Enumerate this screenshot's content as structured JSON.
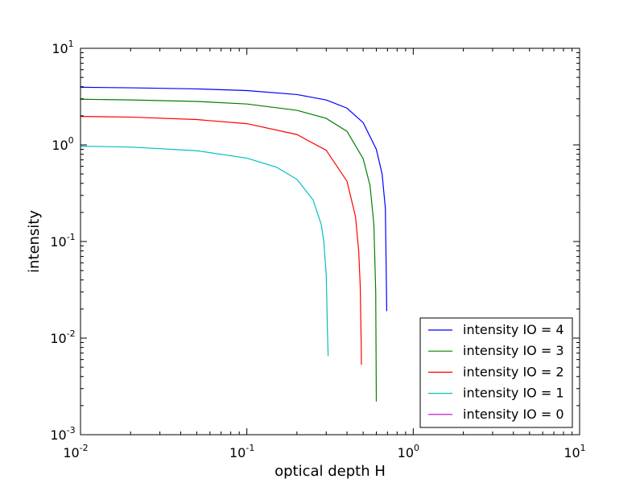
{
  "chart_data": {
    "type": "line",
    "title": "",
    "xlabel": "optical depth H",
    "ylabel": "intensity",
    "xscale": "log",
    "yscale": "log",
    "xlim": [
      0.01,
      10
    ],
    "ylim": [
      0.001,
      10
    ],
    "x_ticks": [
      {
        "value": 0.01,
        "base": "10",
        "exp": "-2"
      },
      {
        "value": 0.1,
        "base": "10",
        "exp": "-1"
      },
      {
        "value": 1,
        "base": "10",
        "exp": "0"
      },
      {
        "value": 10,
        "base": "10",
        "exp": "1"
      }
    ],
    "y_ticks": [
      {
        "value": 0.001,
        "base": "10",
        "exp": "-3"
      },
      {
        "value": 0.01,
        "base": "10",
        "exp": "-2"
      },
      {
        "value": 0.1,
        "base": "10",
        "exp": "-1"
      },
      {
        "value": 1,
        "base": "10",
        "exp": "0"
      },
      {
        "value": 10,
        "base": "10",
        "exp": "1"
      }
    ],
    "grid": false,
    "legend_position": "lower-right",
    "series": [
      {
        "name": "intensity IO = 4",
        "color": "#0000ff",
        "x": [
          0.01,
          0.02,
          0.05,
          0.1,
          0.2,
          0.3,
          0.4,
          0.5,
          0.6,
          0.65,
          0.68,
          0.693
        ],
        "y": [
          3.95,
          3.9,
          3.8,
          3.65,
          3.32,
          2.92,
          2.4,
          1.7,
          0.9,
          0.5,
          0.22,
          0.019
        ]
      },
      {
        "name": "intensity IO = 3",
        "color": "#008000",
        "x": [
          0.01,
          0.02,
          0.05,
          0.1,
          0.2,
          0.3,
          0.4,
          0.5,
          0.55,
          0.58,
          0.595,
          0.6
        ],
        "y": [
          2.97,
          2.92,
          2.82,
          2.65,
          2.28,
          1.88,
          1.38,
          0.72,
          0.38,
          0.15,
          0.03,
          0.0022
        ]
      },
      {
        "name": "intensity IO = 2",
        "color": "#ff0000",
        "x": [
          0.01,
          0.02,
          0.05,
          0.1,
          0.2,
          0.3,
          0.4,
          0.45,
          0.47,
          0.48,
          0.487,
          0.488
        ],
        "y": [
          1.97,
          1.94,
          1.83,
          1.66,
          1.28,
          0.88,
          0.42,
          0.18,
          0.08,
          0.035,
          0.008,
          0.0053
        ]
      },
      {
        "name": "intensity IO = 1",
        "color": "#00bfbf",
        "x": [
          0.01,
          0.02,
          0.05,
          0.1,
          0.15,
          0.2,
          0.25,
          0.28,
          0.29,
          0.3,
          0.305,
          0.308
        ],
        "y": [
          0.97,
          0.95,
          0.87,
          0.73,
          0.59,
          0.44,
          0.27,
          0.15,
          0.1,
          0.045,
          0.012,
          0.0065
        ]
      },
      {
        "name": "intensity IO = 0",
        "color": "#bf00bf",
        "x": [],
        "y": []
      }
    ]
  }
}
